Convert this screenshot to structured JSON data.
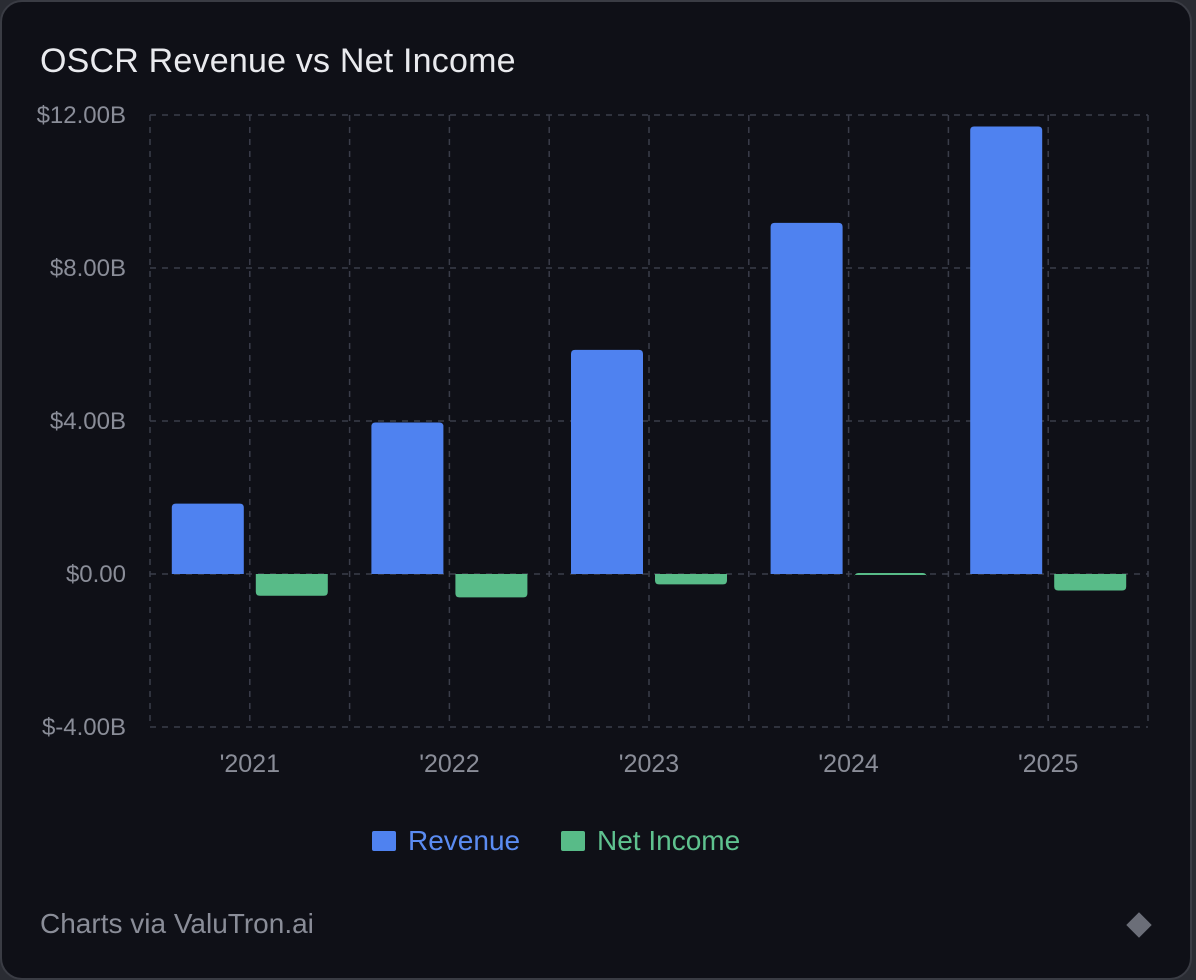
{
  "card": {
    "title": "OSCR Revenue vs Net Income",
    "footer": "Charts via ValuTron.ai",
    "footer_icon": "diamond-icon"
  },
  "colors": {
    "background": "#0f1017",
    "revenue": "#4f82f0",
    "net_income": "#58bb88",
    "grid": "#3a3d4a",
    "axis_text": "#8a8d98",
    "legend_revenue_text": "#5b8cf2",
    "legend_net_income_text": "#5fc28f"
  },
  "chart_data": {
    "type": "bar",
    "title": "OSCR Revenue vs Net Income",
    "categories": [
      "'2021",
      "'2022",
      "'2023",
      "'2024",
      "'2025"
    ],
    "series": [
      {
        "name": "Revenue",
        "values": [
          1.84,
          3.96,
          5.86,
          9.18,
          11.7
        ]
      },
      {
        "name": "Net Income",
        "values": [
          -0.57,
          -0.61,
          -0.27,
          0.025,
          -0.43
        ]
      }
    ],
    "unit": "billions USD",
    "ylim": [
      -4,
      12
    ],
    "yticks": [
      12,
      8,
      4,
      0,
      -4
    ],
    "ytick_labels": [
      "$12.00B",
      "$8.00B",
      "$4.00B",
      "$0.00",
      "$-4.00B"
    ],
    "xlabel": "",
    "ylabel": "",
    "grid": true,
    "legend": [
      "Revenue",
      "Net Income"
    ],
    "legend_position": "bottom-center"
  }
}
